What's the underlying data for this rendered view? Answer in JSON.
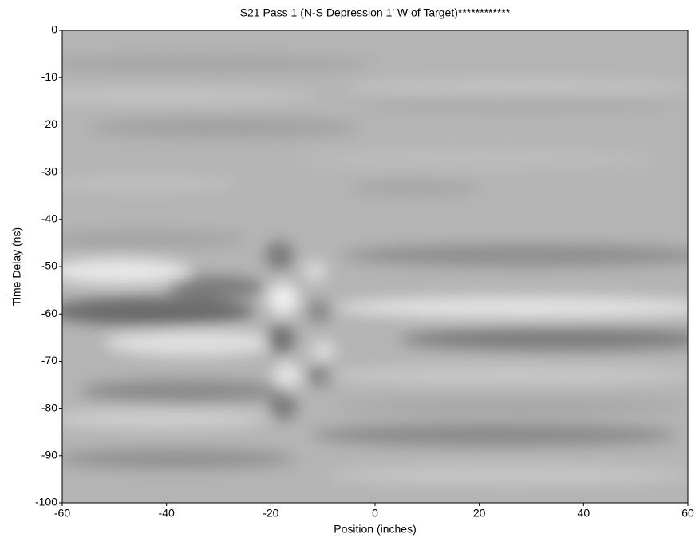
{
  "chart_data": {
    "type": "heatmap",
    "title": "S21 Pass 1 (N-S Depression 1' W of Target)************",
    "xlabel": "Position (inches)",
    "ylabel": "Time Delay (ns)",
    "xlim": [
      -60,
      60
    ],
    "ylim": [
      -100,
      0
    ],
    "xticks": [
      -60,
      -40,
      -20,
      0,
      20,
      40,
      60
    ],
    "yticks": [
      0,
      -10,
      -20,
      -30,
      -40,
      -50,
      -60,
      -70,
      -80,
      -90,
      -100
    ],
    "grid": false
  }
}
